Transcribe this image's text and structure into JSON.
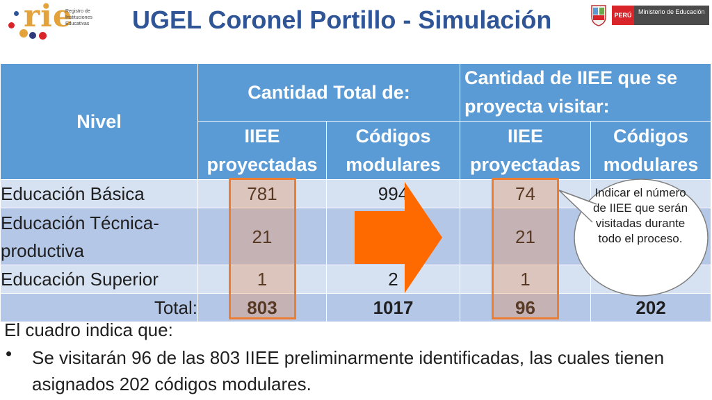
{
  "header": {
    "rie_logo_word": "rie",
    "rie_logo_caption": "Registro de Instituciones Educativas",
    "title": "UGEL Coronel Portillo - Simulación",
    "minedu_country": "PERÚ",
    "minedu_ministry": "Ministerio de Educación"
  },
  "table": {
    "col_nivel": "Nivel",
    "group_total": "Cantidad Total de:",
    "group_visit": "Cantidad de IIEE que se proyecta visitar:",
    "sub_iiee": "IIEE proyectadas",
    "sub_codigos": "Códigos modulares",
    "rows": [
      {
        "nivel": "Educación Básica",
        "total_iiee": "781",
        "total_codigos": "994",
        "visit_iiee": "74",
        "visit_codigos": ""
      },
      {
        "nivel": "Educación Técnica-productiva",
        "total_iiee": "21",
        "total_codigos": "",
        "visit_iiee": "21",
        "visit_codigos": ""
      },
      {
        "nivel": "Educación Superior",
        "total_iiee": "1",
        "total_codigos": "2",
        "visit_iiee": "1",
        "visit_codigos": ""
      }
    ],
    "total": {
      "label": "Total:",
      "total_iiee": "803",
      "total_codigos": "1017",
      "visit_iiee": "96",
      "visit_codigos": "202"
    }
  },
  "callout": {
    "text": "Indicar el número de IIEE que serán visitadas durante todo el proceso."
  },
  "notes": {
    "intro": "El cuadro indica que:",
    "bullet_symbol": "•",
    "bullet": "Se visitarán 96 de las 803 IIEE preliminarmente identificadas, las cuales tienen asignados 202 códigos modulares."
  },
  "colors": {
    "title": "#2f5597",
    "header_fill": "#5b9bd5",
    "row_light": "#d6e1f1",
    "row_dark": "#b4c7e7",
    "accent_orange": "#ed7d31",
    "arrow": "#ff6a00"
  }
}
